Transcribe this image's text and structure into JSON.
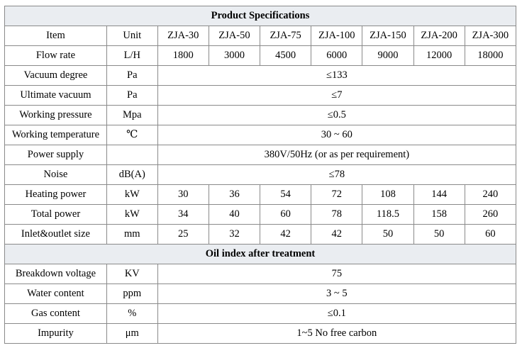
{
  "title": "Product Specifications",
  "header": {
    "item": "Item",
    "unit": "Unit",
    "models": [
      "ZJA-30",
      "ZJA-50",
      "ZJA-75",
      "ZJA-100",
      "ZJA-150",
      "ZJA-200",
      "ZJA-300"
    ]
  },
  "rows": {
    "flow_rate": {
      "label": "Flow rate",
      "unit": "L/H",
      "values": [
        "1800",
        "3000",
        "4500",
        "6000",
        "9000",
        "12000",
        "18000"
      ]
    },
    "vacuum_degree": {
      "label": "Vacuum degree",
      "unit": "Pa",
      "value": "≤133"
    },
    "ultimate_vacuum": {
      "label": "Ultimate vacuum",
      "unit": "Pa",
      "value": "≤7"
    },
    "working_pressure": {
      "label": "Working pressure",
      "unit": "Mpa",
      "value": "≤0.5"
    },
    "working_temperature": {
      "label": "Working temperature",
      "unit": "℃",
      "value": "30 ~ 60"
    },
    "power_supply": {
      "label": "Power supply",
      "unit": "",
      "value": "380V/50Hz (or as per requirement)"
    },
    "noise": {
      "label": "Noise",
      "unit": "dB(A)",
      "value": "≤78"
    },
    "heating_power": {
      "label": "Heating power",
      "unit": "kW",
      "values": [
        "30",
        "36",
        "54",
        "72",
        "108",
        "144",
        "240"
      ]
    },
    "total_power": {
      "label": "Total power",
      "unit": "kW",
      "values": [
        "34",
        "40",
        "60",
        "78",
        "118.5",
        "158",
        "260"
      ]
    },
    "inlet_outlet": {
      "label": "Inlet&outlet size",
      "unit": "mm",
      "values": [
        "25",
        "32",
        "42",
        "42",
        "50",
        "50",
        "60"
      ]
    }
  },
  "oil_section": {
    "title": "Oil index after treatment",
    "rows": {
      "breakdown_voltage": {
        "label": "Breakdown voltage",
        "unit": "KV",
        "value": "75"
      },
      "water_content": {
        "label": "Water content",
        "unit": "ppm",
        "value": "3 ~ 5"
      },
      "gas_content": {
        "label": "Gas content",
        "unit": "%",
        "value": "≤0.1"
      },
      "impurity": {
        "label": "Impurity",
        "unit": "μm",
        "value": "1~5 No free carbon"
      }
    }
  }
}
